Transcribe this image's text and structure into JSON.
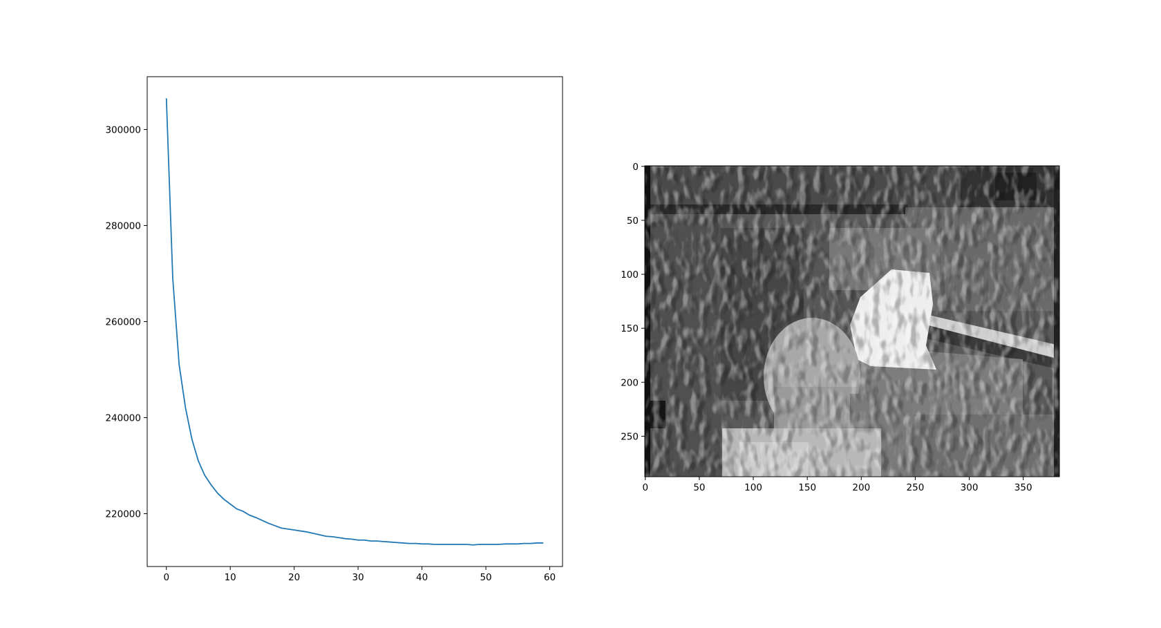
{
  "chart_data": [
    {
      "type": "line",
      "title": "",
      "xlabel": "",
      "ylabel": "",
      "xlim": [
        -3,
        62
      ],
      "ylim": [
        209000,
        311000
      ],
      "grid": false,
      "xticks": [
        0,
        10,
        20,
        30,
        40,
        50,
        60
      ],
      "yticks": [
        220000,
        240000,
        260000,
        280000,
        300000
      ],
      "series": [
        {
          "color": "#1f77b4",
          "x": [
            0,
            1,
            2,
            3,
            4,
            5,
            6,
            7,
            8,
            9,
            10,
            11,
            12,
            13,
            14,
            15,
            16,
            17,
            18,
            19,
            20,
            21,
            22,
            23,
            24,
            25,
            26,
            27,
            28,
            29,
            30,
            31,
            32,
            33,
            34,
            35,
            36,
            37,
            38,
            39,
            40,
            41,
            42,
            43,
            44,
            45,
            46,
            47,
            48,
            49,
            50,
            51,
            52,
            53,
            54,
            55,
            56,
            57,
            58,
            59
          ],
          "values": [
            306500,
            269000,
            251000,
            242000,
            235500,
            231000,
            228000,
            226000,
            224300,
            223000,
            222000,
            221000,
            220500,
            219700,
            219200,
            218600,
            218000,
            217500,
            217000,
            216800,
            216600,
            216400,
            216200,
            215900,
            215600,
            215300,
            215200,
            215000,
            214800,
            214700,
            214500,
            214500,
            214300,
            214300,
            214200,
            214100,
            214000,
            213900,
            213800,
            213800,
            213700,
            213700,
            213600,
            213600,
            213600,
            213600,
            213600,
            213600,
            213500,
            213600,
            213600,
            213600,
            213600,
            213700,
            213700,
            213700,
            213800,
            213800,
            213900,
            213900
          ]
        }
      ]
    },
    {
      "type": "heatmap",
      "title": "",
      "colormap": "gray",
      "image_size": [
        384,
        288
      ],
      "xlim": [
        -0.5,
        383.5
      ],
      "ylim": [
        287.5,
        -0.5
      ],
      "xticks": [
        0,
        50,
        100,
        150,
        200,
        250,
        300,
        350
      ],
      "yticks": [
        0,
        50,
        100,
        150,
        200,
        250
      ],
      "grid": false
    }
  ]
}
